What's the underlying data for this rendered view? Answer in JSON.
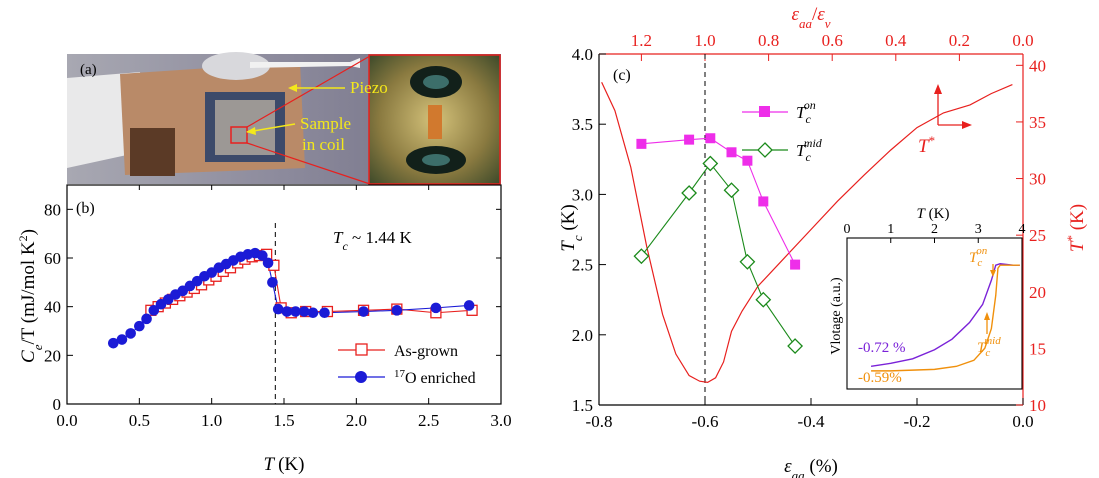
{
  "panel_a": {
    "label": "(a)",
    "piezo_label": "Piezo",
    "sample_label_1": "Sample",
    "sample_label_2": "in coil"
  },
  "chart_data": [
    {
      "type": "scatter",
      "panel": "(b)",
      "xlabel_var": "T",
      "xlabel_unit": "(K)",
      "ylabel_var": "C",
      "ylabel_sub": "e",
      "ylabel_rest": "/T (mJ/mol K",
      "ylabel_sup": "2",
      "ylabel_close": ")",
      "xlim": [
        0,
        3
      ],
      "ylim": [
        0,
        90
      ],
      "x_ticks": [
        "0.0",
        "0.5",
        "1.0",
        "1.5",
        "2.0",
        "2.5",
        "3.0"
      ],
      "y_ticks": [
        "0",
        "20",
        "40",
        "60",
        "80"
      ],
      "annotation_var": "T",
      "annotation_sub": "c",
      "annotation_text": " ~ 1.44 K",
      "tc_line_x": 1.44,
      "series": [
        {
          "name": "As-grown",
          "marker": "open-square",
          "color": "#e8201e",
          "points": [
            [
              0.58,
              38.5
            ],
            [
              0.63,
              40
            ],
            [
              0.68,
              41.5
            ],
            [
              0.73,
              43
            ],
            [
              0.78,
              44.5
            ],
            [
              0.83,
              46
            ],
            [
              0.88,
              47.5
            ],
            [
              0.93,
              49
            ],
            [
              0.98,
              51
            ],
            [
              1.03,
              52.5
            ],
            [
              1.08,
              54.5
            ],
            [
              1.13,
              56
            ],
            [
              1.18,
              58
            ],
            [
              1.23,
              59.5
            ],
            [
              1.28,
              60.5
            ],
            [
              1.33,
              61
            ],
            [
              1.38,
              61.5
            ],
            [
              1.43,
              57
            ],
            [
              1.48,
              39.5
            ],
            [
              1.55,
              37.5
            ],
            [
              1.65,
              38
            ],
            [
              1.8,
              38
            ],
            [
              2.05,
              38.5
            ],
            [
              2.28,
              39
            ],
            [
              2.55,
              37.5
            ],
            [
              2.8,
              38.5
            ]
          ]
        },
        {
          "name": "17O enriched",
          "name_sup": "17",
          "name_rest": "O enriched",
          "marker": "filled-circle",
          "color": "#1b1bd6",
          "points": [
            [
              0.32,
              25
            ],
            [
              0.38,
              26.5
            ],
            [
              0.44,
              29
            ],
            [
              0.5,
              32
            ],
            [
              0.55,
              35
            ],
            [
              0.6,
              38.5
            ],
            [
              0.65,
              41
            ],
            [
              0.7,
              43
            ],
            [
              0.75,
              45
            ],
            [
              0.8,
              46.5
            ],
            [
              0.85,
              48.5
            ],
            [
              0.9,
              50.5
            ],
            [
              0.95,
              52.5
            ],
            [
              1.0,
              54
            ],
            [
              1.05,
              56
            ],
            [
              1.1,
              57.5
            ],
            [
              1.15,
              59
            ],
            [
              1.2,
              60.5
            ],
            [
              1.25,
              61.5
            ],
            [
              1.3,
              62
            ],
            [
              1.35,
              61
            ],
            [
              1.39,
              58
            ],
            [
              1.42,
              50
            ],
            [
              1.46,
              39
            ],
            [
              1.52,
              38
            ],
            [
              1.58,
              38
            ],
            [
              1.64,
              38
            ],
            [
              1.7,
              37.5
            ],
            [
              1.78,
              37.5
            ],
            [
              2.05,
              38
            ],
            [
              2.28,
              38.5
            ],
            [
              2.55,
              39.5
            ],
            [
              2.78,
              40.5
            ]
          ]
        }
      ]
    },
    {
      "type": "line",
      "panel": "(c)",
      "xlabel_var": "ε",
      "xlabel_sub": "aa",
      "xlabel_unit": " (%)",
      "ylabel_var": "T",
      "ylabel_sub": "c",
      "ylabel_unit": " (K)",
      "y2label_var": "T",
      "y2label_sup": "*",
      "y2label_unit": " (K)",
      "toplabel_a": "ε",
      "toplabel_a_sub": "aa",
      "toplabel_slash": "/",
      "toplabel_b": "ε",
      "toplabel_b_sub": "v",
      "xlim": [
        -0.8,
        0.0
      ],
      "ylim": [
        1.5,
        4.0
      ],
      "y2lim": [
        10,
        41
      ],
      "x_ticks": [
        "-0.8",
        "-0.6",
        "-0.4",
        "-0.2",
        "0.0"
      ],
      "x_top_ticks": [
        "1.2",
        "1.0",
        "0.8",
        "0.6",
        "0.4",
        "0.2",
        "0.0"
      ],
      "y_ticks": [
        "1.5",
        "2.0",
        "2.5",
        "3.0",
        "3.5",
        "4.0"
      ],
      "y2_ticks": [
        "10",
        "15",
        "20",
        "25",
        "30",
        "35",
        "40"
      ],
      "dashed_line_x": -0.6,
      "arrow_label": "T",
      "arrow_label_sup": "*",
      "series": [
        {
          "name": "T_c^on",
          "label_var": "T",
          "label_sub": "c",
          "label_sup": "on",
          "marker": "filled-square",
          "color": "#ee2ee9",
          "points": [
            [
              -0.72,
              3.36
            ],
            [
              -0.63,
              3.39
            ],
            [
              -0.59,
              3.4
            ],
            [
              -0.55,
              3.3
            ],
            [
              -0.52,
              3.24
            ],
            [
              -0.49,
              2.95
            ],
            [
              -0.43,
              2.5
            ]
          ]
        },
        {
          "name": "T_c^mid",
          "label_var": "T",
          "label_sub": "c",
          "label_sup": "mid",
          "marker": "open-diamond",
          "color": "#1b8a1b",
          "points": [
            [
              -0.72,
              2.56
            ],
            [
              -0.63,
              3.01
            ],
            [
              -0.59,
              3.22
            ],
            [
              -0.55,
              3.03
            ],
            [
              -0.52,
              2.52
            ],
            [
              -0.49,
              2.25
            ],
            [
              -0.43,
              1.92
            ]
          ]
        },
        {
          "name": "T*",
          "color": "#e8201e",
          "axis": "y2",
          "points": [
            [
              -0.795,
              38.5
            ],
            [
              -0.77,
              36
            ],
            [
              -0.74,
              31
            ],
            [
              -0.71,
              24
            ],
            [
              -0.68,
              18
            ],
            [
              -0.655,
              14.5
            ],
            [
              -0.63,
              12.6
            ],
            [
              -0.61,
              12.1
            ],
            [
              -0.595,
              12
            ],
            [
              -0.58,
              12.4
            ],
            [
              -0.565,
              13.8
            ],
            [
              -0.55,
              16.5
            ],
            [
              -0.53,
              18.3
            ],
            [
              -0.5,
              20.5
            ],
            [
              -0.45,
              23
            ],
            [
              -0.4,
              25.5
            ],
            [
              -0.35,
              28
            ],
            [
              -0.3,
              30.3
            ],
            [
              -0.25,
              32.5
            ],
            [
              -0.2,
              34.5
            ],
            [
              -0.15,
              35.8
            ],
            [
              -0.1,
              36.5
            ],
            [
              -0.06,
              37.5
            ],
            [
              -0.02,
              38.3
            ]
          ]
        }
      ],
      "inset": {
        "type": "line",
        "xlabel_var": "T",
        "xlabel_unit": " (K)",
        "ylabel": "Vlotage (a.u.)",
        "xlim": [
          0,
          4
        ],
        "x_ticks": [
          "0",
          "1",
          "2",
          "3",
          "4"
        ],
        "on_label_var": "T",
        "on_label_sub": "c",
        "on_label_sup": "on",
        "mid_label_var": "T",
        "mid_label_sub": "c",
        "mid_label_sup": "mid",
        "series": [
          {
            "name": "-0.72 %",
            "color": "#7a22d8",
            "points": [
              [
                0.55,
                0.15
              ],
              [
                1.0,
                0.17
              ],
              [
                1.5,
                0.2
              ],
              [
                2.0,
                0.26
              ],
              [
                2.4,
                0.33
              ],
              [
                2.8,
                0.44
              ],
              [
                3.1,
                0.56
              ],
              [
                3.3,
                0.72
              ],
              [
                3.4,
                0.82
              ],
              [
                3.5,
                0.83
              ],
              [
                3.8,
                0.82
              ],
              [
                3.95,
                0.82
              ]
            ]
          },
          {
            "name": "-0.59%",
            "color": "#f0900c",
            "points": [
              [
                0.55,
                0.12
              ],
              [
                1.0,
                0.12
              ],
              [
                1.5,
                0.125
              ],
              [
                2.0,
                0.13
              ],
              [
                2.5,
                0.15
              ],
              [
                2.9,
                0.19
              ],
              [
                3.15,
                0.27
              ],
              [
                3.3,
                0.4
              ],
              [
                3.4,
                0.62
              ],
              [
                3.45,
                0.8
              ],
              [
                3.5,
                0.82
              ],
              [
                3.8,
                0.82
              ],
              [
                3.95,
                0.82
              ]
            ]
          }
        ]
      }
    }
  ]
}
